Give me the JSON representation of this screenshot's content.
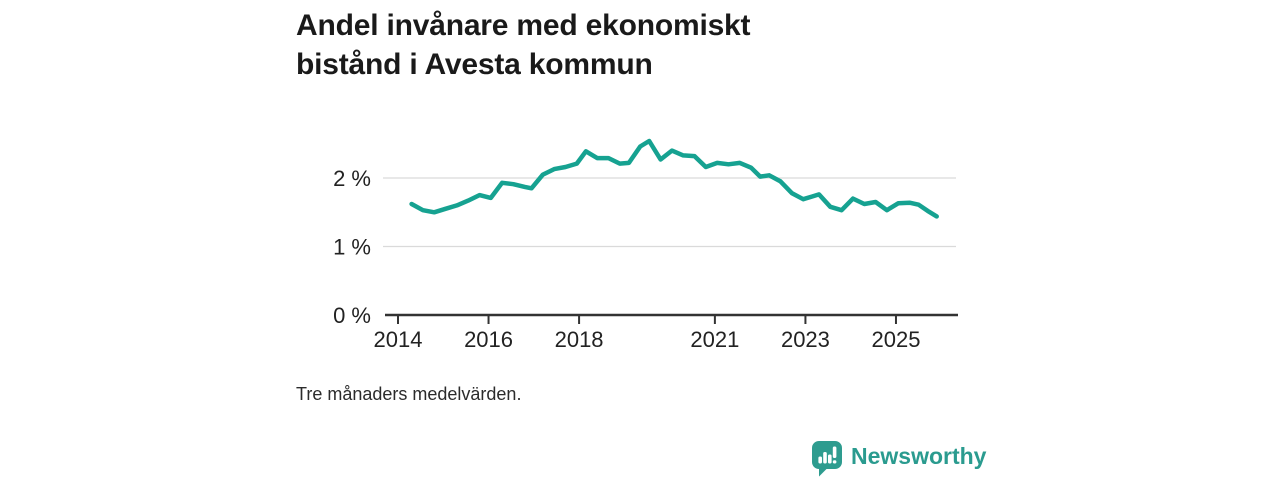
{
  "title": "Andel invånare med ekonomiskt bistånd i Avesta kommun",
  "footnote": "Tre månaders medelvärden.",
  "branding": {
    "name": "Newsworthy",
    "icon": "newsworthy-bars-icon",
    "color": "#2E9C8F"
  },
  "colors": {
    "line": "#16A291",
    "grid": "#DADADA",
    "axis": "#333333",
    "text": "#222222"
  },
  "chart_data": {
    "type": "line",
    "title": "Andel invånare med ekonomiskt bistånd i Avesta kommun",
    "subtitle": "",
    "xlabel": "",
    "ylabel": "",
    "unit": "%",
    "grid": "horizontal",
    "legend": "none",
    "xlim": [
      2013.7,
      2026.4
    ],
    "ylim": [
      0,
      2.9
    ],
    "x_ticks": [
      2014,
      2016,
      2018,
      2021,
      2023,
      2025
    ],
    "y_ticks": [
      {
        "value": 0,
        "label": "0 %"
      },
      {
        "value": 1,
        "label": "1 %"
      },
      {
        "value": 2,
        "label": "2 %"
      }
    ],
    "series": [
      {
        "name": "Andel invånare med ekonomiskt bistånd",
        "color": "#16A291",
        "points": [
          [
            2014.3,
            1.62
          ],
          [
            2014.55,
            1.53
          ],
          [
            2014.8,
            1.5
          ],
          [
            2015.05,
            1.55
          ],
          [
            2015.3,
            1.6
          ],
          [
            2015.55,
            1.67
          ],
          [
            2015.8,
            1.75
          ],
          [
            2016.05,
            1.71
          ],
          [
            2016.3,
            1.93
          ],
          [
            2016.55,
            1.91
          ],
          [
            2016.8,
            1.87
          ],
          [
            2016.95,
            1.85
          ],
          [
            2017.2,
            2.05
          ],
          [
            2017.45,
            2.13
          ],
          [
            2017.7,
            2.16
          ],
          [
            2017.95,
            2.21
          ],
          [
            2018.15,
            2.39
          ],
          [
            2018.4,
            2.29
          ],
          [
            2018.65,
            2.29
          ],
          [
            2018.9,
            2.21
          ],
          [
            2019.1,
            2.22
          ],
          [
            2019.35,
            2.46
          ],
          [
            2019.55,
            2.54
          ],
          [
            2019.8,
            2.27
          ],
          [
            2020.05,
            2.4
          ],
          [
            2020.3,
            2.33
          ],
          [
            2020.55,
            2.32
          ],
          [
            2020.8,
            2.16
          ],
          [
            2021.05,
            2.22
          ],
          [
            2021.3,
            2.2
          ],
          [
            2021.55,
            2.22
          ],
          [
            2021.8,
            2.15
          ],
          [
            2022.0,
            2.02
          ],
          [
            2022.2,
            2.04
          ],
          [
            2022.45,
            1.95
          ],
          [
            2022.7,
            1.78
          ],
          [
            2022.95,
            1.69
          ],
          [
            2023.15,
            1.73
          ],
          [
            2023.3,
            1.76
          ],
          [
            2023.55,
            1.58
          ],
          [
            2023.8,
            1.53
          ],
          [
            2024.05,
            1.7
          ],
          [
            2024.3,
            1.62
          ],
          [
            2024.55,
            1.65
          ],
          [
            2024.8,
            1.53
          ],
          [
            2025.05,
            1.63
          ],
          [
            2025.3,
            1.64
          ],
          [
            2025.5,
            1.61
          ],
          [
            2025.7,
            1.52
          ],
          [
            2025.9,
            1.44
          ]
        ]
      }
    ]
  }
}
